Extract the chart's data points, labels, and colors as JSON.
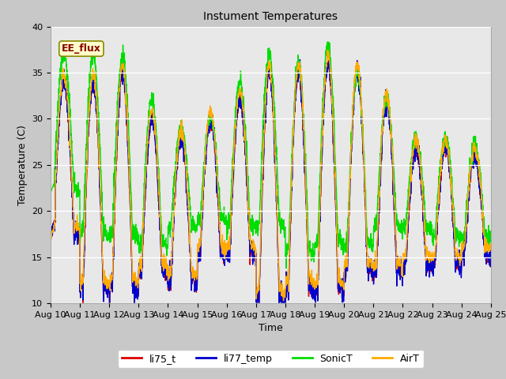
{
  "title": "Instument Temperatures",
  "xlabel": "Time",
  "ylabel": "Temperature (C)",
  "ylim": [
    10,
    40
  ],
  "n_days": 15,
  "pts_per_day": 144,
  "background_color": "#c8c8c8",
  "plot_bg_color": "#e8e8e8",
  "annotation_text": "EE_flux",
  "annotation_facecolor": "#ffffcc",
  "annotation_edgecolor": "#888800",
  "annotation_textcolor": "#880000",
  "series": {
    "li75_t": {
      "color": "#dd0000",
      "lw": 1.0
    },
    "li77_temp": {
      "color": "#0000cc",
      "lw": 1.0
    },
    "SonicT": {
      "color": "#00dd00",
      "lw": 1.0
    },
    "AirT": {
      "color": "#ffaa00",
      "lw": 1.0
    }
  },
  "xtick_labels": [
    "Aug 10",
    "Aug 11",
    "Aug 12",
    "Aug 13",
    "Aug 14",
    "Aug 15",
    "Aug 16",
    "Aug 17",
    "Aug 18",
    "Aug 19",
    "Aug 20",
    "Aug 21",
    "Aug 22",
    "Aug 23",
    "Aug 24",
    "Aug 25"
  ],
  "ytick_values": [
    10,
    15,
    20,
    25,
    30,
    35,
    40
  ],
  "grid_color": "#ffffff",
  "grid_lw": 1.0,
  "title_fontsize": 10,
  "tick_fontsize": 8,
  "label_fontsize": 9,
  "legend_fontsize": 9,
  "figsize": [
    6.4,
    4.8
  ],
  "dpi": 100
}
